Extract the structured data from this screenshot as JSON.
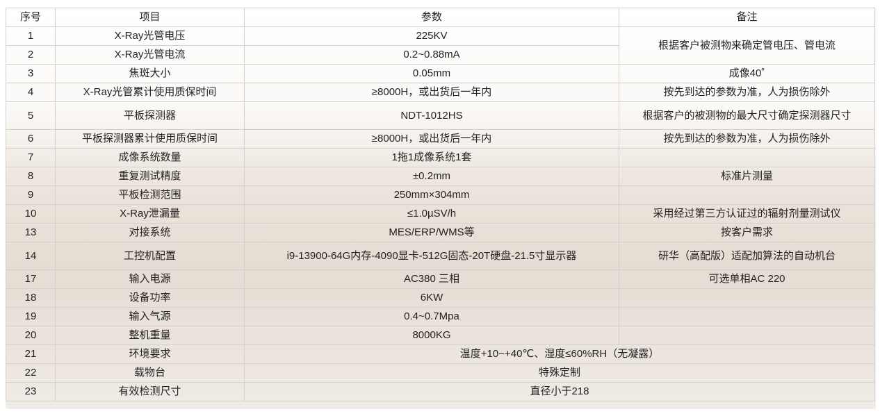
{
  "headers": [
    "序号",
    "项目",
    "参数",
    "备注"
  ],
  "rows": [
    {
      "no": "1",
      "item": "X-Ray光管电压",
      "param": "225KV",
      "remark": "根据客户被测物来确定管电压、管电流"
    },
    {
      "no": "2",
      "item": "X-Ray光管电流",
      "param": "0.2~0.88mA"
    },
    {
      "no": "3",
      "item": "焦斑大小",
      "param": "0.05mm",
      "remark": "成像40˚"
    },
    {
      "no": "4",
      "item": "X-Ray光管累计使用质保时间",
      "param": "≥8000H，或出货后一年内",
      "remark": "按先到达的参数为准，人为损伤除外"
    },
    {
      "no": "5",
      "item": "平板探测器",
      "param": "NDT-1012HS",
      "remark": "根据客户的被测物的最大尺寸确定探测器尺寸"
    },
    {
      "no": "6",
      "item": "平板探测器累计使用质保时间",
      "param": "≥8000H，或出货后一年内",
      "remark": "按先到达的参数为准，人为损伤除外"
    },
    {
      "no": "7",
      "item": "成像系统数量",
      "param": "1拖1成像系统1套",
      "remark": ""
    },
    {
      "no": "8",
      "item": "重复测试精度",
      "param": "±0.2mm",
      "remark": "标准片测量"
    },
    {
      "no": "9",
      "item": "平板检测范围",
      "param": "250mm×304mm",
      "remark": ""
    },
    {
      "no": "10",
      "item": "X-Ray泄漏量",
      "param": "≤1.0µSV/h",
      "remark": "采用经过第三方认证过的辐射剂量测试仪"
    },
    {
      "no": "13",
      "item": "对接系统",
      "param": "MES/ERP/WMS等",
      "remark": "按客户需求"
    },
    {
      "no": "14",
      "item": "工控机配置",
      "param": "i9-13900-64G内存-4090显卡-512G固态-20T硬盘-21.5寸显示器",
      "remark": "研华（高配版）适配加算法的自动机台"
    },
    {
      "no": "17",
      "item": "输入电源",
      "param": "AC380 三相",
      "remark": "可选单相AC 220"
    },
    {
      "no": "18",
      "item": "设备功率",
      "param": "6KW",
      "remark": ""
    },
    {
      "no": "19",
      "item": "输入气源",
      "param": "0.4~0.7Mpa",
      "remark": ""
    },
    {
      "no": "20",
      "item": "整机重量",
      "param": "8000KG",
      "remark": ""
    },
    {
      "no": "21",
      "item": "环境要求",
      "param": "温度+10~+40℃、湿度≤60%RH（无凝露）"
    },
    {
      "no": "22",
      "item": "载物台",
      "param": "特殊定制"
    },
    {
      "no": "23",
      "item": "有效检测尺寸",
      "param": "直径小于218"
    }
  ]
}
